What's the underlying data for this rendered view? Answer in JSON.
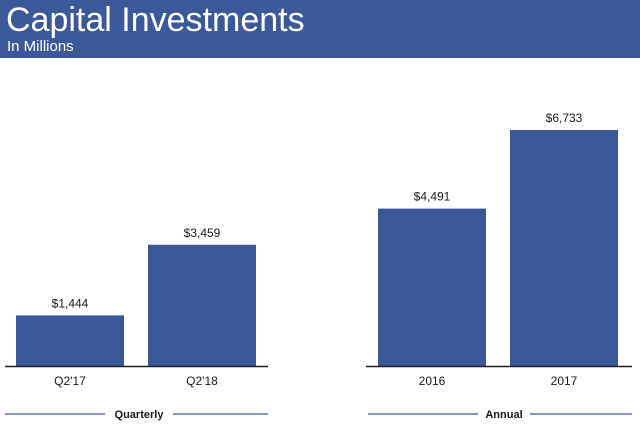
{
  "header": {
    "title": "Capital Investments",
    "subtitle": "In Millions"
  },
  "colors": {
    "header_bg": "#3b5998",
    "bar": "#3b5998",
    "text": "#1a1a1a",
    "axis": "#222222",
    "group_line": "#3b5998"
  },
  "chart_data": [
    {
      "type": "bar",
      "group_label": "Quarterly",
      "categories": [
        "Q2'17",
        "Q2'18"
      ],
      "values": [
        1444,
        3459
      ],
      "value_labels": [
        "$1,444",
        "$3,459"
      ],
      "unit": "Millions",
      "ylim": [
        0,
        7000
      ],
      "grid": false
    },
    {
      "type": "bar",
      "group_label": "Annual",
      "categories": [
        "2016",
        "2017"
      ],
      "values": [
        4491,
        6733
      ],
      "value_labels": [
        "$4,491",
        "$6,733"
      ],
      "unit": "Millions",
      "ylim": [
        0,
        7000
      ],
      "grid": false
    }
  ]
}
